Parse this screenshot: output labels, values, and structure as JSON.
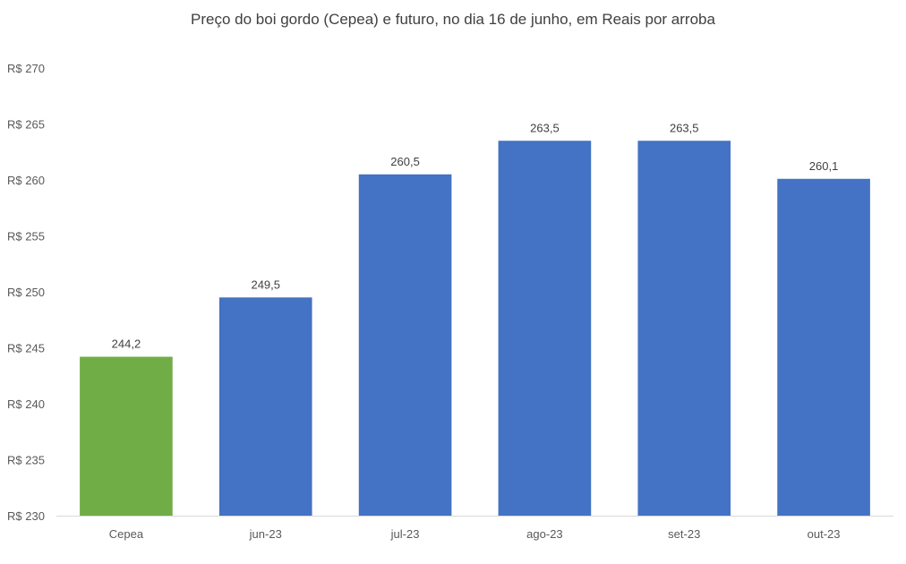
{
  "chart_data": {
    "type": "bar",
    "title": "Preço do boi gordo (Cepea) e futuro, no dia 16 de junho, em Reais por arroba",
    "categories": [
      "Cepea",
      "jun-23",
      "jul-23",
      "ago-23",
      "set-23",
      "out-23"
    ],
    "values": [
      244.2,
      249.5,
      260.5,
      263.5,
      263.5,
      260.1
    ],
    "data_labels": [
      "244,2",
      "249,5",
      "260,5",
      "263,5",
      "263,5",
      "260,1"
    ],
    "bar_colors": [
      "#70AD47",
      "#4472C4",
      "#4472C4",
      "#4472C4",
      "#4472C4",
      "#4472C4"
    ],
    "ylim": [
      230,
      270
    ],
    "y_ticks": [
      230,
      235,
      240,
      245,
      250,
      255,
      260,
      265,
      270
    ],
    "y_tick_labels": [
      "R$ 230",
      "R$ 235",
      "R$ 240",
      "R$ 245",
      "R$ 250",
      "R$ 255",
      "R$ 260",
      "R$ 265",
      "R$ 270"
    ],
    "xlabel": "",
    "ylabel": "",
    "grid": false,
    "legend": "none"
  }
}
